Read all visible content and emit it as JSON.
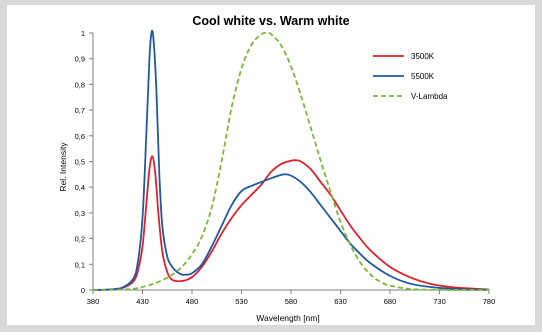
{
  "chart_data": {
    "type": "line",
    "title": "Cool white vs. Warm white",
    "xlabel": "Wavelength [nm]",
    "ylabel": "Rel. Intensity",
    "xlim": [
      380,
      780
    ],
    "ylim": [
      0,
      1
    ],
    "x_ticks": [
      "380",
      "430",
      "480",
      "530",
      "580",
      "630",
      "680",
      "730",
      "780"
    ],
    "y_ticks": [
      "0",
      "0,1",
      "0,2",
      "0,3",
      "0,4",
      "0,5",
      "0,6",
      "0,7",
      "0,8",
      "0,9",
      "1"
    ],
    "grid": false,
    "legend_position": "top-right",
    "series": [
      {
        "name": "3500K",
        "color": "#e0202a",
        "style": "solid",
        "x": [
          380,
          400,
          410,
          420,
          425,
          430,
          434,
          437,
          440,
          443,
          446,
          450,
          455,
          460,
          470,
          480,
          490,
          500,
          510,
          520,
          530,
          540,
          550,
          560,
          570,
          580,
          585,
          590,
          600,
          610,
          620,
          630,
          640,
          650,
          660,
          680,
          700,
          720,
          740,
          760,
          780
        ],
        "y": [
          0,
          0.002,
          0.008,
          0.03,
          0.07,
          0.17,
          0.34,
          0.47,
          0.52,
          0.45,
          0.3,
          0.15,
          0.07,
          0.04,
          0.035,
          0.05,
          0.09,
          0.15,
          0.22,
          0.28,
          0.33,
          0.37,
          0.41,
          0.46,
          0.49,
          0.503,
          0.505,
          0.5,
          0.47,
          0.42,
          0.37,
          0.31,
          0.25,
          0.2,
          0.155,
          0.09,
          0.05,
          0.025,
          0.012,
          0.006,
          0.002
        ]
      },
      {
        "name": "5500K",
        "color": "#1f5aa0",
        "style": "solid",
        "x": [
          380,
          400,
          410,
          420,
          425,
          430,
          434,
          437,
          439,
          441,
          444,
          447,
          450,
          455,
          460,
          465,
          470,
          475,
          480,
          490,
          500,
          510,
          520,
          530,
          540,
          550,
          560,
          570,
          575,
          580,
          590,
          600,
          610,
          620,
          630,
          640,
          650,
          660,
          680,
          700,
          720,
          740,
          760,
          780
        ],
        "y": [
          0,
          0.003,
          0.01,
          0.04,
          0.1,
          0.28,
          0.62,
          0.9,
          1.0,
          0.98,
          0.78,
          0.45,
          0.25,
          0.13,
          0.09,
          0.07,
          0.06,
          0.06,
          0.065,
          0.1,
          0.17,
          0.25,
          0.33,
          0.385,
          0.405,
          0.42,
          0.435,
          0.448,
          0.45,
          0.445,
          0.42,
          0.38,
          0.33,
          0.28,
          0.23,
          0.18,
          0.14,
          0.105,
          0.055,
          0.025,
          0.012,
          0.005,
          0.002,
          0.001
        ]
      },
      {
        "name": "V-Lambda",
        "color": "#7ab831",
        "style": "dashed",
        "x": [
          380,
          400,
          420,
          430,
          440,
          450,
          460,
          470,
          480,
          490,
          500,
          510,
          520,
          530,
          540,
          550,
          555,
          560,
          570,
          580,
          590,
          600,
          610,
          620,
          630,
          640,
          650,
          660,
          670,
          680,
          700,
          720,
          740,
          760,
          780
        ],
        "y": [
          0,
          0.0004,
          0.004,
          0.0116,
          0.023,
          0.038,
          0.06,
          0.091,
          0.139,
          0.208,
          0.323,
          0.503,
          0.71,
          0.862,
          0.954,
          0.995,
          1.0,
          0.995,
          0.952,
          0.87,
          0.757,
          0.631,
          0.503,
          0.381,
          0.265,
          0.175,
          0.107,
          0.061,
          0.032,
          0.017,
          0.004,
          0.001,
          0.0003,
          0.0001,
          0
        ]
      }
    ]
  }
}
